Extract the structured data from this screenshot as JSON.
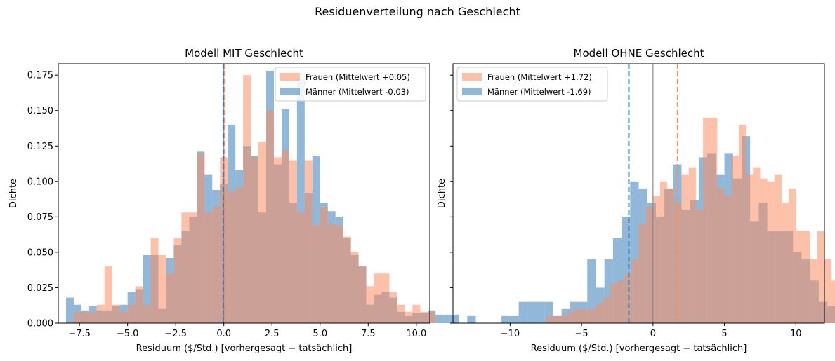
{
  "suptitle": "Residuenverteilung nach Geschlecht",
  "colors": {
    "frauen": "#fc8d62",
    "maenner": "#377eb8",
    "frauen_line": "#fc8d62",
    "maenner_line": "#377eb8",
    "zero_line": "#888888"
  },
  "chart_data": [
    {
      "type": "histogram",
      "title": "Modell MIT Geschlecht",
      "xlabel": "Residuum ($/Std.)  [vorhergesagt − tatsächlich]",
      "ylabel": "Dichte",
      "xlim": [
        -8.6,
        10.7
      ],
      "ylim": [
        0,
        0.183
      ],
      "xticks": [
        -7.5,
        -5.0,
        -2.5,
        0.0,
        2.5,
        5.0,
        7.5,
        10.0
      ],
      "xtick_labels": [
        "−7.5",
        "−5.0",
        "−2.5",
        "0.0",
        "2.5",
        "5.0",
        "7.5",
        "10.0"
      ],
      "yticks": [
        0.0,
        0.025,
        0.05,
        0.075,
        0.1,
        0.125,
        0.15,
        0.175
      ],
      "ytick_labels": [
        "0.000",
        "0.025",
        "0.050",
        "0.075",
        "0.100",
        "0.125",
        "0.150",
        "0.175"
      ],
      "legend_position": "top-right",
      "series": [
        {
          "name": "Frauen  (Mittelwert +0.05)",
          "bin_start": -7.8,
          "bin_width": 0.4,
          "values": [
            0.008,
            0.008,
            0.008,
            0.013,
            0.04,
            0.013,
            0.008,
            0.013,
            0.026,
            0.013,
            0.06,
            0.048,
            0.035,
            0.06,
            0.078,
            0.078,
            0.12,
            0.078,
            0.082,
            0.117,
            0.093,
            0.096,
            0.175,
            0.117,
            0.128,
            0.15,
            0.117,
            0.122,
            0.115,
            0.078,
            0.115,
            0.069,
            0.082,
            0.07,
            0.069,
            0.061,
            0.05,
            0.04,
            0.026,
            0.035,
            0.035,
            0.022,
            0.013,
            0.008,
            0.013,
            0.008,
            0.008
          ],
          "mean": 0.05
        },
        {
          "name": "Männer  (Mittelwert -0.03)",
          "bin_start": -8.2,
          "bin_width": 0.4,
          "values": [
            0.018,
            0.013,
            0.009,
            0.012,
            0.009,
            0.009,
            0.012,
            0.013,
            0.022,
            0.024,
            0.048,
            0.048,
            0.01,
            0.046,
            0.055,
            0.065,
            0.075,
            0.121,
            0.105,
            0.094,
            0.098,
            0.14,
            0.108,
            0.125,
            0.118,
            0.078,
            0.178,
            0.112,
            0.151,
            0.085,
            0.172,
            0.092,
            0.118,
            0.085,
            0.079,
            0.075,
            0.06,
            0.048,
            0.04,
            0.013,
            0.02,
            0.022,
            0.018,
            0.008,
            0.005,
            0.007,
            0.007,
            0.009,
            0.006,
            0.006,
            0.006
          ],
          "mean": -0.03
        }
      ]
    },
    {
      "type": "histogram",
      "title": "Modell OHNE Geschlecht",
      "xlabel": "Residuum ($/Std.)  [vorhergesagt − tatsächlich]",
      "ylabel": "Dichte",
      "xlim": [
        -14.0,
        12.0
      ],
      "ylim": [
        0,
        0.183
      ],
      "xticks": [
        -10,
        -5,
        0,
        5,
        10
      ],
      "xtick_labels": [
        "−10",
        "−5",
        "0",
        "5",
        "10"
      ],
      "yticks": [
        0.0,
        0.025,
        0.05,
        0.075,
        0.1,
        0.125,
        0.15,
        0.175
      ],
      "ytick_labels": [
        "",
        "",
        "",
        "",
        "",
        "",
        "",
        ""
      ],
      "legend_position": "top-left",
      "series": [
        {
          "name": "Frauen  (Mittelwert +1.72)",
          "bin_start": -7.5,
          "bin_width": 0.5,
          "values": [
            0.005,
            0.005,
            0.005,
            0.008,
            0.01,
            0.01,
            0.01,
            0.014,
            0.018,
            0.028,
            0.03,
            0.035,
            0.045,
            0.07,
            0.082,
            0.09,
            0.1,
            0.095,
            0.085,
            0.105,
            0.11,
            0.08,
            0.145,
            0.145,
            0.095,
            0.09,
            0.118,
            0.14,
            0.105,
            0.11,
            0.102,
            0.1,
            0.105,
            0.085,
            0.095,
            0.065,
            0.065,
            0.045,
            0.065,
            0.045,
            0.03,
            0.03,
            0.015,
            0.03,
            0.015,
            0.022,
            0.015,
            0.01,
            0.01,
            0.014,
            0.01,
            0.005,
            0.005,
            0.005,
            0.005,
            0.005
          ],
          "mean": 1.72
        },
        {
          "name": "Männer  (Mittelwert -1.69)",
          "bin_start": -13.0,
          "bin_width": 0.6,
          "values": [
            0.005,
            0.0,
            0.0,
            0.0,
            0.005,
            0.005,
            0.015,
            0.015,
            0.015,
            0.015,
            0.005,
            0.01,
            0.015,
            0.015,
            0.045,
            0.025,
            0.045,
            0.06,
            0.075,
            0.1,
            0.095,
            0.085,
            0.075,
            0.095,
            0.112,
            0.08,
            0.087,
            0.117,
            0.12,
            0.105,
            0.12,
            0.102,
            0.132,
            0.072,
            0.085,
            0.065,
            0.065,
            0.065,
            0.05,
            0.045,
            0.03,
            0.015,
            0.012,
            0.01,
            0.005,
            0.005,
            0.005
          ],
          "mean": -1.69
        }
      ]
    }
  ]
}
